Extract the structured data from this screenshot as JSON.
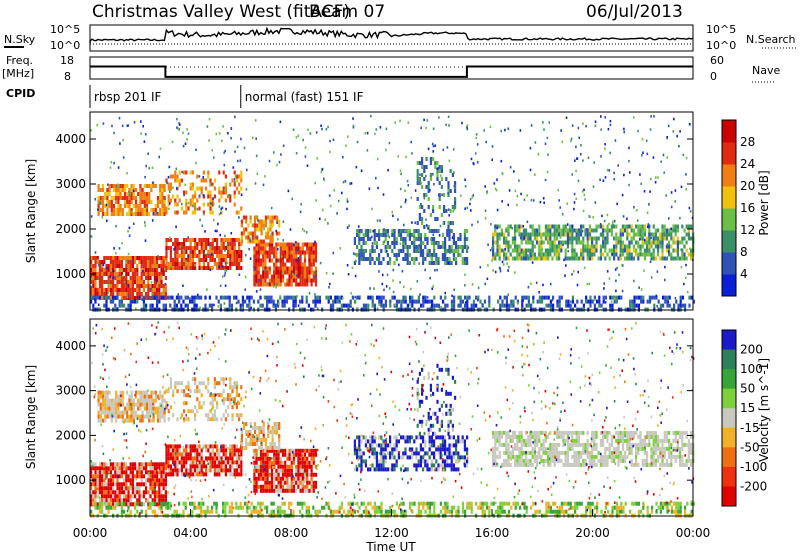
{
  "header": {
    "title": "Christmas Valley West (fitACF)",
    "beam": "Beam 07",
    "date": "06/Jul/2013"
  },
  "nsky_panel": {
    "label": "N.Sky",
    "ticks_left": [
      "10^5",
      "10^0"
    ],
    "ticks_right": [
      "10^5",
      "10^0"
    ],
    "right_label": "N.Search"
  },
  "freq_panel": {
    "label_line1": "Freq.",
    "label_line2": "[MHz]",
    "ticks_left": [
      "18",
      "8"
    ],
    "ticks_right": [
      "60",
      "0"
    ],
    "right_label": "Nave",
    "cpid_label": "CPID",
    "cpid_segments": [
      {
        "label": "rbsp 201 IF",
        "start": 0,
        "end": 6
      },
      {
        "label": "normal (fast) 151 IF",
        "start": 6,
        "end": 24
      }
    ],
    "freq_steps": [
      {
        "start": 0,
        "end": 3,
        "value": 14
      },
      {
        "start": 3,
        "end": 15,
        "value": 9
      },
      {
        "start": 15,
        "end": 24,
        "value": 14
      }
    ]
  },
  "chart_data": [
    {
      "type": "heatmap",
      "name": "power",
      "ylabel": "Slant Range [km]",
      "yticks": [
        1000,
        2000,
        3000,
        4000
      ],
      "ylim": [
        200,
        4600
      ],
      "xlim": [
        0,
        24
      ],
      "colorbar": {
        "label": "Power [dB]",
        "ticks": [
          "4",
          "8",
          "12",
          "16",
          "20",
          "24",
          "28"
        ],
        "colors": [
          "#0b1fd8",
          "#2f52b8",
          "#3b8f66",
          "#6bbf45",
          "#f0c20c",
          "#f07e12",
          "#e02a12",
          "#cc0000"
        ]
      }
    },
    {
      "type": "heatmap",
      "name": "velocity",
      "ylabel": "Slant Range [km]",
      "yticks": [
        1000,
        2000,
        3000,
        4000
      ],
      "ylim": [
        200,
        4600
      ],
      "xlim": [
        0,
        24
      ],
      "xticks": [
        "00:00",
        "04:00",
        "08:00",
        "12:00",
        "16:00",
        "20:00",
        "00:00"
      ],
      "xlabel": "Time UT",
      "colorbar": {
        "label": "Velocity [m s^-1]",
        "ticks": [
          "200",
          "100",
          "50",
          "15",
          "-15",
          "-50",
          "-100",
          "-200"
        ],
        "colors": [
          "#1a1ac8",
          "#2e7f5c",
          "#36a436",
          "#7ed03a",
          "#c8c8c0",
          "#f0b02a",
          "#f07010",
          "#ee3010",
          "#e00000"
        ]
      }
    }
  ]
}
